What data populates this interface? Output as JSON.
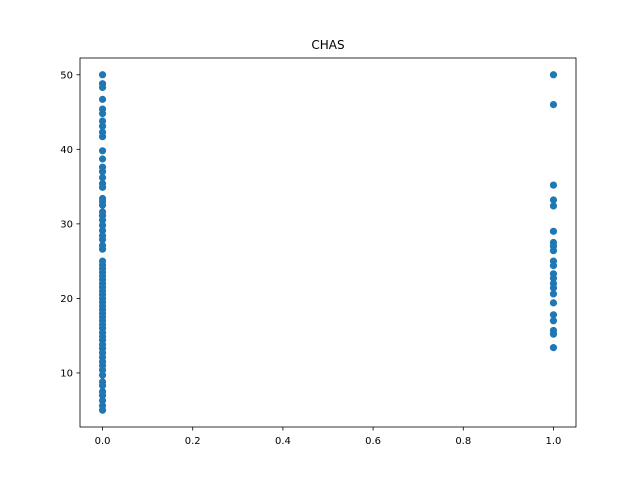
{
  "chart_data": {
    "type": "scatter",
    "title": "CHAS",
    "xlabel": "",
    "ylabel": "",
    "xlim": [
      -0.05,
      1.05
    ],
    "ylim": [
      2.75,
      52.25
    ],
    "xticks": [
      0.0,
      0.2,
      0.4,
      0.6,
      0.8,
      1.0
    ],
    "xtick_labels": [
      "0.0",
      "0.2",
      "0.4",
      "0.6",
      "0.8",
      "1.0"
    ],
    "yticks": [
      10,
      20,
      30,
      40,
      50
    ],
    "ytick_labels": [
      "10",
      "20",
      "30",
      "40",
      "50"
    ],
    "grid": false,
    "marker_color": "#1f77b4",
    "points": [
      {
        "x": 0,
        "y": 50.0
      },
      {
        "x": 0,
        "y": 48.8
      },
      {
        "x": 0,
        "y": 48.3
      },
      {
        "x": 0,
        "y": 46.7
      },
      {
        "x": 0,
        "y": 45.4
      },
      {
        "x": 0,
        "y": 44.8
      },
      {
        "x": 0,
        "y": 43.8
      },
      {
        "x": 0,
        "y": 43.1
      },
      {
        "x": 0,
        "y": 42.3
      },
      {
        "x": 0,
        "y": 41.7
      },
      {
        "x": 0,
        "y": 39.8
      },
      {
        "x": 0,
        "y": 38.7
      },
      {
        "x": 0,
        "y": 37.6
      },
      {
        "x": 0,
        "y": 37.0
      },
      {
        "x": 0,
        "y": 36.2
      },
      {
        "x": 0,
        "y": 35.4
      },
      {
        "x": 0,
        "y": 34.9
      },
      {
        "x": 0,
        "y": 33.4
      },
      {
        "x": 0,
        "y": 33.0
      },
      {
        "x": 0,
        "y": 32.5
      },
      {
        "x": 0,
        "y": 31.6
      },
      {
        "x": 0,
        "y": 31.1
      },
      {
        "x": 0,
        "y": 30.5
      },
      {
        "x": 0,
        "y": 29.8
      },
      {
        "x": 0,
        "y": 29.1
      },
      {
        "x": 0,
        "y": 28.4
      },
      {
        "x": 0,
        "y": 27.9
      },
      {
        "x": 0,
        "y": 27.1
      },
      {
        "x": 0,
        "y": 26.6
      },
      {
        "x": 0,
        "y": 25.0
      },
      {
        "x": 0,
        "y": 24.5
      },
      {
        "x": 0,
        "y": 24.0
      },
      {
        "x": 0,
        "y": 23.5
      },
      {
        "x": 0,
        "y": 23.0
      },
      {
        "x": 0,
        "y": 22.5
      },
      {
        "x": 0,
        "y": 22.0
      },
      {
        "x": 0,
        "y": 21.5
      },
      {
        "x": 0,
        "y": 21.0
      },
      {
        "x": 0,
        "y": 20.5
      },
      {
        "x": 0,
        "y": 20.0
      },
      {
        "x": 0,
        "y": 19.5
      },
      {
        "x": 0,
        "y": 19.0
      },
      {
        "x": 0,
        "y": 18.5
      },
      {
        "x": 0,
        "y": 18.0
      },
      {
        "x": 0,
        "y": 17.5
      },
      {
        "x": 0,
        "y": 17.0
      },
      {
        "x": 0,
        "y": 16.5
      },
      {
        "x": 0,
        "y": 16.0
      },
      {
        "x": 0,
        "y": 15.4
      },
      {
        "x": 0,
        "y": 14.9
      },
      {
        "x": 0,
        "y": 14.4
      },
      {
        "x": 0,
        "y": 13.8
      },
      {
        "x": 0,
        "y": 13.3
      },
      {
        "x": 0,
        "y": 12.7
      },
      {
        "x": 0,
        "y": 12.1
      },
      {
        "x": 0,
        "y": 11.5
      },
      {
        "x": 0,
        "y": 11.0
      },
      {
        "x": 0,
        "y": 10.4
      },
      {
        "x": 0,
        "y": 9.7
      },
      {
        "x": 0,
        "y": 8.8
      },
      {
        "x": 0,
        "y": 8.3
      },
      {
        "x": 0,
        "y": 7.5
      },
      {
        "x": 0,
        "y": 7.0
      },
      {
        "x": 0,
        "y": 6.3
      },
      {
        "x": 0,
        "y": 5.6
      },
      {
        "x": 0,
        "y": 5.0
      },
      {
        "x": 1,
        "y": 50.0
      },
      {
        "x": 1,
        "y": 46.0
      },
      {
        "x": 1,
        "y": 35.2
      },
      {
        "x": 1,
        "y": 33.2
      },
      {
        "x": 1,
        "y": 32.4
      },
      {
        "x": 1,
        "y": 29.0
      },
      {
        "x": 1,
        "y": 27.5
      },
      {
        "x": 1,
        "y": 27.0
      },
      {
        "x": 1,
        "y": 26.4
      },
      {
        "x": 1,
        "y": 25.0
      },
      {
        "x": 1,
        "y": 24.4
      },
      {
        "x": 1,
        "y": 23.3
      },
      {
        "x": 1,
        "y": 22.7
      },
      {
        "x": 1,
        "y": 22.0
      },
      {
        "x": 1,
        "y": 21.4
      },
      {
        "x": 1,
        "y": 20.6
      },
      {
        "x": 1,
        "y": 19.4
      },
      {
        "x": 1,
        "y": 17.8
      },
      {
        "x": 1,
        "y": 17.0
      },
      {
        "x": 1,
        "y": 15.7
      },
      {
        "x": 1,
        "y": 15.2
      },
      {
        "x": 1,
        "y": 13.4
      }
    ]
  }
}
